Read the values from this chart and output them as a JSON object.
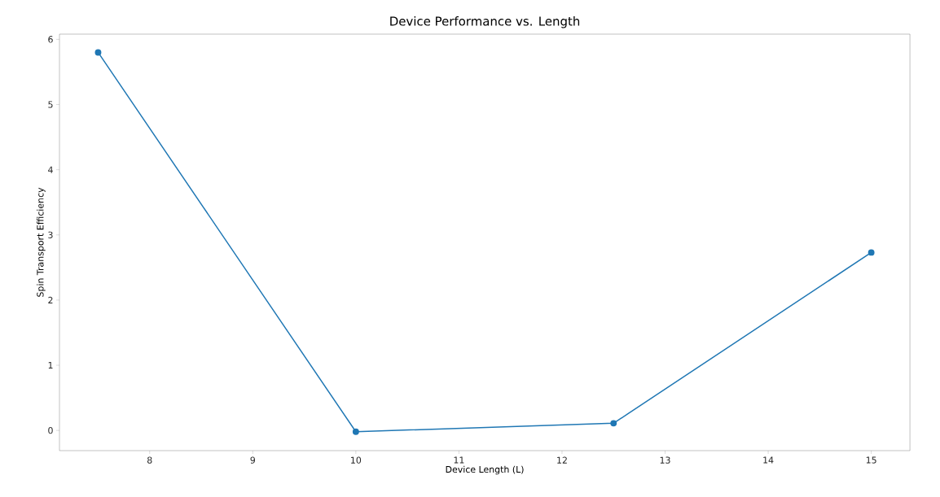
{
  "chart_data": {
    "type": "line",
    "title": "Device Performance vs. Length",
    "xlabel": "Device Length (L)",
    "ylabel": "Spin Transport Efficiency",
    "x": [
      7.5,
      10,
      12.5,
      15
    ],
    "series": [
      {
        "color": "#1f77b4",
        "values": [
          5.8,
          -0.02,
          0.11,
          2.73
        ]
      }
    ],
    "xlim": [
      7.125,
      15.375
    ],
    "xticks": [
      8,
      9,
      10,
      11,
      12,
      13,
      14,
      15
    ],
    "ylim": [
      -0.31,
      6.08
    ],
    "yticks": [
      0,
      1,
      2,
      3,
      4,
      5,
      6
    ],
    "grid": false,
    "marker": "circle",
    "line_style": "solid"
  }
}
